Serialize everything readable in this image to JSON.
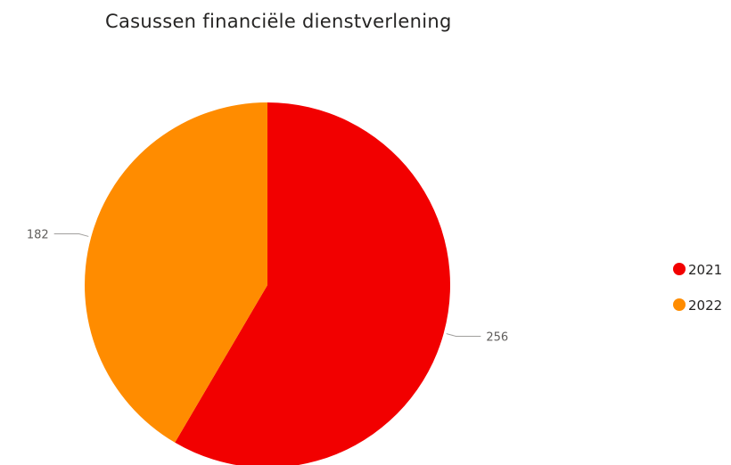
{
  "chart_data": {
    "type": "pie",
    "title": "Casussen financiële dienstverlening",
    "categories": [
      "2021",
      "2022"
    ],
    "values": [
      256,
      182
    ],
    "colors": [
      "#f20000",
      "#ff8c00"
    ],
    "data_labels": [
      "256",
      "182"
    ],
    "legend": {
      "placement": "right",
      "entries": [
        "2021",
        "2022"
      ]
    }
  }
}
